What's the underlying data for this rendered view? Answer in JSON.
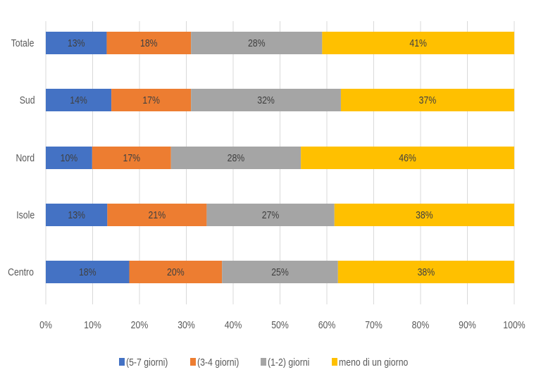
{
  "chart_data": {
    "type": "bar",
    "orientation": "horizontal",
    "stacked": "percent",
    "categories": [
      "Totale",
      "Sud",
      "Nord",
      "Isole",
      "Centro"
    ],
    "series": [
      {
        "name": "(5-7 giorni)",
        "color": "#4472C4",
        "values": [
          13,
          14,
          10,
          13,
          18
        ],
        "labels": [
          "13%",
          "14%",
          "10%",
          "13%",
          "18%"
        ]
      },
      {
        "name": "(3-4 giorni)",
        "color": "#ED7D31",
        "values": [
          18,
          17,
          17,
          21,
          20
        ],
        "labels": [
          "18%",
          "17%",
          "17%",
          "21%",
          "20%"
        ]
      },
      {
        "name": "(1-2) giorni",
        "color": "#A5A5A5",
        "values": [
          28,
          32,
          28,
          27,
          25
        ],
        "labels": [
          "28%",
          "32%",
          "28%",
          "27%",
          "25%"
        ]
      },
      {
        "name": "meno di un giorno",
        "color": "#FFC000",
        "values": [
          41,
          37,
          46,
          38,
          38
        ],
        "labels": [
          "41%",
          "37%",
          "46%",
          "38%",
          "38%"
        ]
      }
    ],
    "xlim": [
      0,
      100
    ],
    "xticks": [
      "0%",
      "10%",
      "20%",
      "30%",
      "40%",
      "50%",
      "60%",
      "70%",
      "80%",
      "90%",
      "100%"
    ],
    "grid": "vertical",
    "legend": "bottom",
    "title": "",
    "xlabel": "",
    "ylabel": ""
  }
}
